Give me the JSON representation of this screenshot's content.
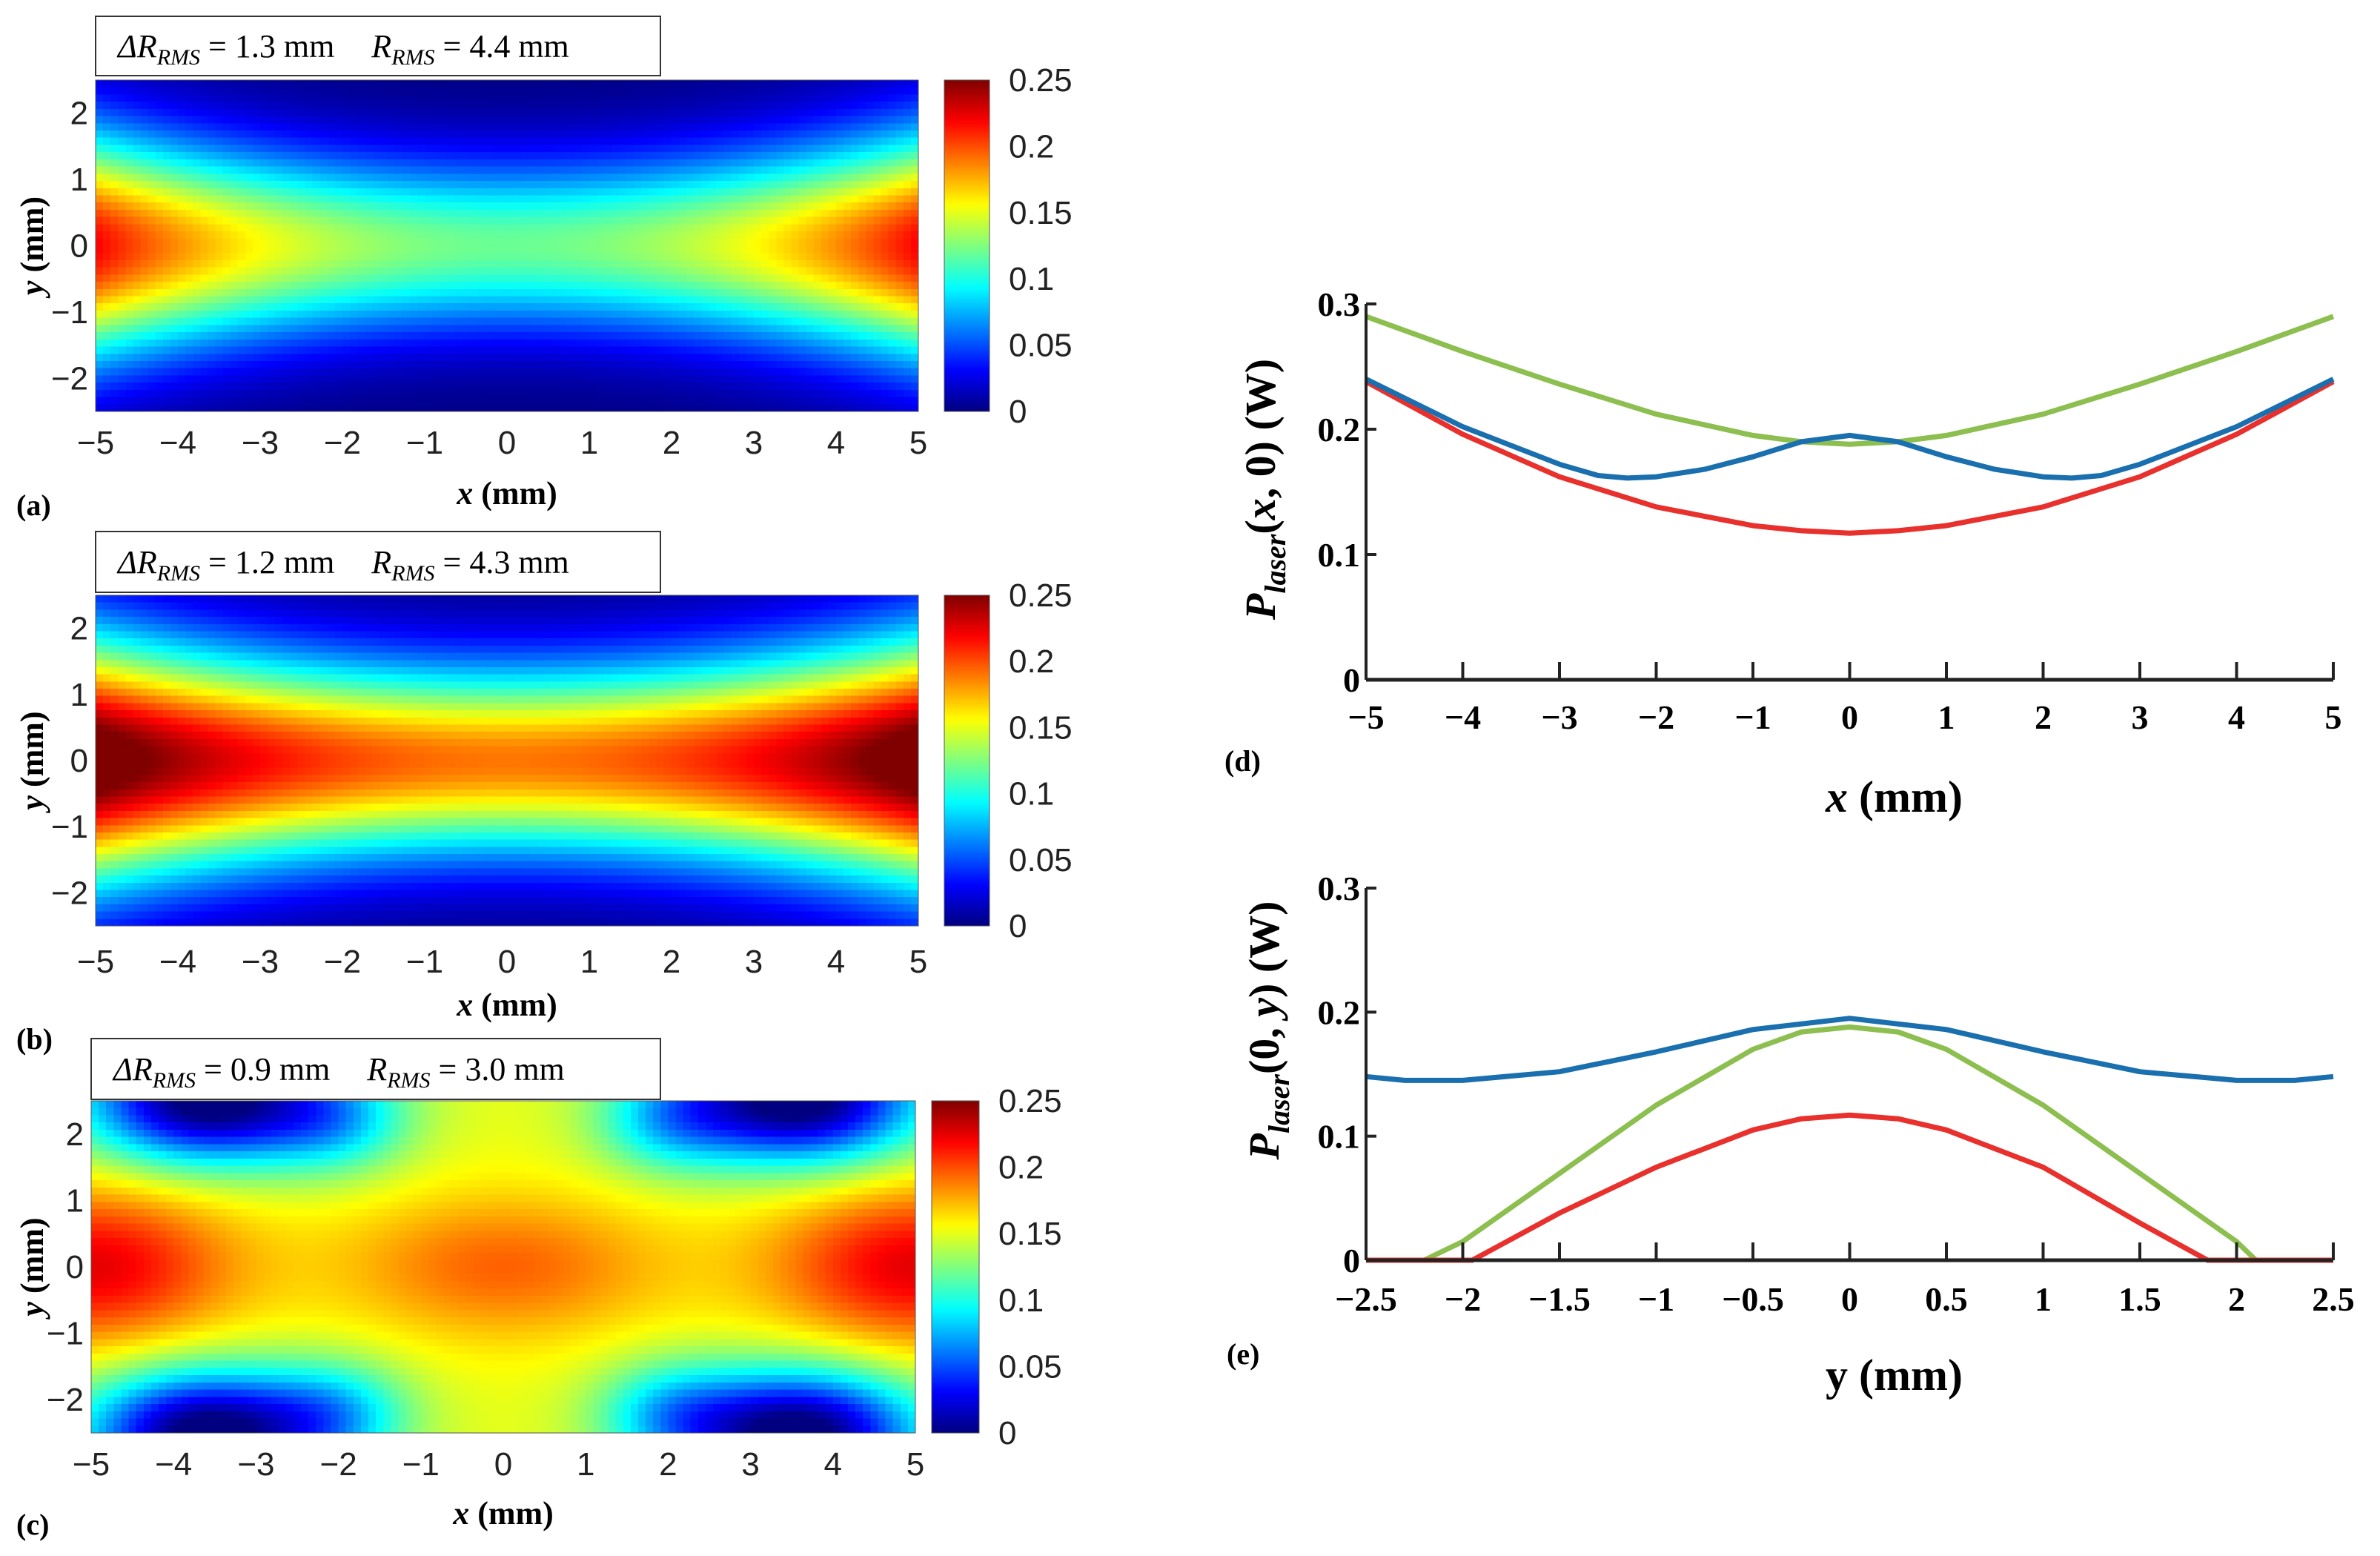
{
  "chart_data": [
    {
      "type": "heatmap",
      "panel_tag": "(a)",
      "annotation": {
        "dr_symbol": "ΔR",
        "dr_sub": "RMS",
        "dr_value": " = 1.3 mm",
        "r_symbol": "R",
        "r_sub": "RMS",
        "r_value": " = 4.4 mm"
      },
      "xlabel": {
        "var": "x",
        "unit": " (mm)"
      },
      "ylabel": {
        "var": "y",
        "unit": " (mm)"
      },
      "xlim": [
        -5,
        5
      ],
      "ylim": [
        -2.5,
        2.5
      ],
      "xticks": [
        "-5",
        "-4",
        "-3",
        "-2",
        "-1",
        "0",
        "1",
        "2",
        "3",
        "4",
        "5"
      ],
      "yticks": [
        "-2",
        "-1",
        "0",
        "1",
        "2"
      ],
      "colormap": "jet",
      "clim": [
        0,
        0.25
      ],
      "colorbar_ticks": [
        "0",
        "0.05",
        "0.1",
        "0.15",
        "0.2",
        "0.25"
      ]
    },
    {
      "type": "heatmap",
      "panel_tag": "(b)",
      "annotation": {
        "dr_symbol": "ΔR",
        "dr_sub": "RMS",
        "dr_value": " = 1.2 mm",
        "r_symbol": "R",
        "r_sub": "RMS",
        "r_value": " = 4.3 mm"
      },
      "xlabel": {
        "var": "x",
        "unit": " (mm)"
      },
      "ylabel": {
        "var": "y",
        "unit": " (mm)"
      },
      "xlim": [
        -5,
        5
      ],
      "ylim": [
        -2.5,
        2.5
      ],
      "xticks": [
        "-5",
        "-4",
        "-3",
        "-2",
        "-1",
        "0",
        "1",
        "2",
        "3",
        "4",
        "5"
      ],
      "yticks": [
        "-2",
        "-1",
        "0",
        "1",
        "2"
      ],
      "colormap": "jet",
      "clim": [
        0,
        0.25
      ],
      "colorbar_ticks": [
        "0",
        "0.05",
        "0.1",
        "0.15",
        "0.2",
        "0.25"
      ]
    },
    {
      "type": "heatmap",
      "panel_tag": "(c)",
      "annotation": {
        "dr_symbol": "ΔR",
        "dr_sub": "RMS",
        "dr_value": " = 0.9 mm",
        "r_symbol": "R",
        "r_sub": "RMS",
        "r_value": " = 3.0 mm"
      },
      "xlabel": {
        "var": "x",
        "unit": " (mm)"
      },
      "ylabel": {
        "var": "y",
        "unit": " (mm)"
      },
      "xlim": [
        -5,
        5
      ],
      "ylim": [
        -2.5,
        2.5
      ],
      "xticks": [
        "-5",
        "-4",
        "-3",
        "-2",
        "-1",
        "0",
        "1",
        "2",
        "3",
        "4",
        "5"
      ],
      "yticks": [
        "-2",
        "-1",
        "0",
        "1",
        "2"
      ],
      "colormap": "jet",
      "clim": [
        0,
        0.25
      ],
      "colorbar_ticks": [
        "0",
        "0.05",
        "0.1",
        "0.15",
        "0.2",
        "0.25"
      ]
    },
    {
      "type": "line",
      "panel_tag": "(d)",
      "xlabel": {
        "var": "x",
        "unit": " (mm)"
      },
      "ylabel": {
        "sym": "P",
        "sub": "laser",
        "open": "(",
        "var": "x",
        "rest": ", 0) (W)"
      },
      "xlim": [
        -5,
        5
      ],
      "ylim": [
        0,
        0.3
      ],
      "xticks": [
        "-5",
        "-4",
        "-3",
        "-2",
        "-1",
        "0",
        "1",
        "2",
        "3",
        "4",
        "5"
      ],
      "yticks": [
        "0",
        "0.1",
        "0.2",
        "0.3"
      ],
      "grid": false,
      "series": [
        {
          "color": "#8cbf4f",
          "x": [
            -5,
            -4,
            -3,
            -2,
            -1,
            -0.5,
            0,
            0.5,
            1,
            2,
            3,
            4,
            5
          ],
          "y": [
            0.29,
            0.262,
            0.236,
            0.212,
            0.195,
            0.19,
            0.188,
            0.19,
            0.195,
            0.212,
            0.236,
            0.262,
            0.29
          ]
        },
        {
          "color": "#e8302c",
          "x": [
            -5,
            -4,
            -3,
            -2,
            -1,
            -0.5,
            0,
            0.5,
            1,
            2,
            3,
            4,
            5
          ],
          "y": [
            0.238,
            0.196,
            0.162,
            0.138,
            0.123,
            0.119,
            0.117,
            0.119,
            0.123,
            0.138,
            0.162,
            0.196,
            0.238
          ]
        },
        {
          "color": "#1a6faf",
          "x": [
            -5,
            -4,
            -3,
            -2.6,
            -2.3,
            -2,
            -1.5,
            -1,
            -0.5,
            0,
            0.5,
            1,
            1.5,
            2,
            2.3,
            2.6,
            3,
            4,
            5
          ],
          "y": [
            0.24,
            0.202,
            0.172,
            0.163,
            0.161,
            0.162,
            0.168,
            0.178,
            0.19,
            0.195,
            0.19,
            0.178,
            0.168,
            0.162,
            0.161,
            0.163,
            0.172,
            0.202,
            0.24
          ]
        }
      ]
    },
    {
      "type": "line",
      "panel_tag": "(e)",
      "xlabel": {
        "var": "y",
        "unit": " (mm)"
      },
      "ylabel": {
        "sym": "P",
        "sub": "laser",
        "open": "(0, ",
        "var": "y",
        "rest": ") (W)"
      },
      "xlim": [
        -2.5,
        2.5
      ],
      "ylim": [
        0,
        0.3
      ],
      "xticks": [
        "-2.5",
        "-2",
        "-1.5",
        "-1",
        "-0.5",
        "0",
        "0.5",
        "1",
        "1.5",
        "2",
        "2.5"
      ],
      "yticks": [
        "0",
        "0.1",
        "0.2",
        "0.3"
      ],
      "grid": false,
      "series": [
        {
          "color": "#1a6faf",
          "x": [
            -2.5,
            -2.3,
            -2,
            -1.5,
            -1,
            -0.5,
            0,
            0.5,
            1,
            1.5,
            2,
            2.3,
            2.5
          ],
          "y": [
            0.148,
            0.145,
            0.145,
            0.152,
            0.168,
            0.186,
            0.195,
            0.186,
            0.168,
            0.152,
            0.145,
            0.145,
            0.148
          ]
        },
        {
          "color": "#8cbf4f",
          "x": [
            -2.5,
            -2.2,
            -2,
            -1.5,
            -1,
            -0.5,
            -0.25,
            0,
            0.25,
            0.5,
            1,
            1.5,
            2,
            2.1,
            2.5
          ],
          "y": [
            0,
            0,
            0.015,
            0.07,
            0.125,
            0.17,
            0.184,
            0.188,
            0.184,
            0.17,
            0.125,
            0.07,
            0.015,
            0,
            0
          ]
        },
        {
          "color": "#e8302c",
          "x": [
            -2.5,
            -1.95,
            -1.5,
            -1,
            -0.5,
            -0.25,
            0,
            0.25,
            0.5,
            1,
            1.5,
            1.85,
            2.5
          ],
          "y": [
            0,
            0,
            0.038,
            0.075,
            0.105,
            0.114,
            0.117,
            0.114,
            0.105,
            0.075,
            0.03,
            0,
            0
          ]
        }
      ]
    }
  ]
}
